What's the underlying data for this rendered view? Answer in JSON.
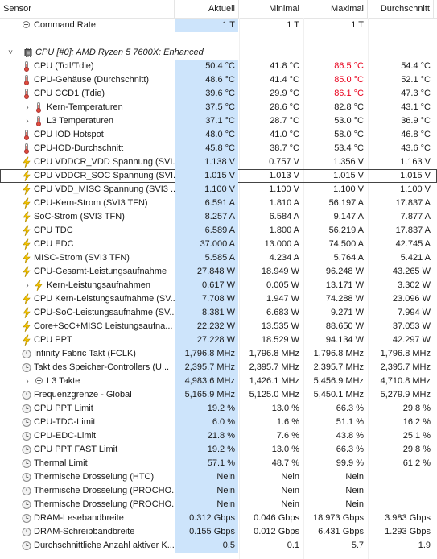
{
  "header": {
    "sensor": "Sensor",
    "current": "Aktuell",
    "minimal": "Minimal",
    "maximal": "Maximal",
    "average": "Durchschnitt"
  },
  "rows": [
    {
      "type": "collapse",
      "indent": 0,
      "icon": "collapse-circle-icon",
      "label": "Command Rate",
      "cur": "1 T",
      "min": "1 T",
      "max": "1 T",
      "avg": ""
    },
    {
      "type": "blank"
    },
    {
      "type": "group",
      "label": "CPU [#0]: AMD Ryzen 5 7600X: Enhanced",
      "icon": "cpu-chip-icon"
    },
    {
      "type": "temp",
      "label": "CPU (Tctl/Tdie)",
      "cur": "50.4 °C",
      "min": "41.8 °C",
      "max": "86.5 °C",
      "avg": "54.4 °C",
      "maxRed": true
    },
    {
      "type": "temp",
      "label": "CPU-Gehäuse (Durchschnitt)",
      "cur": "48.6 °C",
      "min": "41.4 °C",
      "max": "85.0 °C",
      "avg": "52.1 °C",
      "maxRed": true
    },
    {
      "type": "temp",
      "label": "CPU CCD1 (Tdie)",
      "cur": "39.6 °C",
      "min": "29.9 °C",
      "max": "86.1 °C",
      "avg": "47.3 °C",
      "maxRed": true
    },
    {
      "type": "temp-expand",
      "label": "Kern-Temperaturen",
      "cur": "37.5 °C",
      "min": "28.6 °C",
      "max": "82.8 °C",
      "avg": "43.1 °C"
    },
    {
      "type": "temp-expand",
      "label": "L3 Temperaturen",
      "cur": "37.1 °C",
      "min": "28.7 °C",
      "max": "53.0 °C",
      "avg": "36.9 °C"
    },
    {
      "type": "temp",
      "label": "CPU IOD Hotspot",
      "cur": "48.0 °C",
      "min": "41.0 °C",
      "max": "58.0 °C",
      "avg": "46.8 °C"
    },
    {
      "type": "temp",
      "label": "CPU-IOD-Durchschnitt",
      "cur": "45.8 °C",
      "min": "38.7 °C",
      "max": "53.4 °C",
      "avg": "43.6 °C"
    },
    {
      "type": "volt",
      "label": "CPU VDDCR_VDD Spannung (SVI...",
      "cur": "1.138 V",
      "min": "0.757 V",
      "max": "1.356 V",
      "avg": "1.163 V"
    },
    {
      "type": "volt",
      "label": "CPU VDDCR_SOC Spannung (SVI...",
      "cur": "1.015 V",
      "min": "1.013 V",
      "max": "1.015 V",
      "avg": "1.015 V",
      "selected": true
    },
    {
      "type": "volt",
      "label": "CPU VDD_MISC Spannung (SVI3 ...",
      "cur": "1.100 V",
      "min": "1.100 V",
      "max": "1.100 V",
      "avg": "1.100 V"
    },
    {
      "type": "volt",
      "label": "CPU-Kern-Strom (SVI3 TFN)",
      "cur": "6.591 A",
      "min": "1.810 A",
      "max": "56.197 A",
      "avg": "17.837 A"
    },
    {
      "type": "volt",
      "label": "SoC-Strom (SVI3 TFN)",
      "cur": "8.257 A",
      "min": "6.584 A",
      "max": "9.147 A",
      "avg": "7.877 A"
    },
    {
      "type": "volt",
      "label": "CPU TDC",
      "cur": "6.589 A",
      "min": "1.800 A",
      "max": "56.219 A",
      "avg": "17.837 A"
    },
    {
      "type": "volt",
      "label": "CPU EDC",
      "cur": "37.000 A",
      "min": "13.000 A",
      "max": "74.500 A",
      "avg": "42.745 A"
    },
    {
      "type": "volt",
      "label": "MISC-Strom (SVI3 TFN)",
      "cur": "5.585 A",
      "min": "4.234 A",
      "max": "5.764 A",
      "avg": "5.421 A"
    },
    {
      "type": "volt",
      "label": "CPU-Gesamt-Leistungsaufnahme",
      "cur": "27.848 W",
      "min": "18.949 W",
      "max": "96.248 W",
      "avg": "43.265 W"
    },
    {
      "type": "volt-expand",
      "label": "Kern-Leistungsaufnahmen",
      "cur": "0.617 W",
      "min": "0.005 W",
      "max": "13.171 W",
      "avg": "3.302 W"
    },
    {
      "type": "volt",
      "label": "CPU Kern-Leistungsaufnahme (SV...",
      "cur": "7.708 W",
      "min": "1.947 W",
      "max": "74.288 W",
      "avg": "23.096 W"
    },
    {
      "type": "volt",
      "label": "CPU-SoC-Leistungsaufnahme (SV...",
      "cur": "8.381 W",
      "min": "6.683 W",
      "max": "9.271 W",
      "avg": "7.994 W"
    },
    {
      "type": "volt",
      "label": "Core+SoC+MISC Leistungsaufna...",
      "cur": "22.232 W",
      "min": "13.535 W",
      "max": "88.650 W",
      "avg": "37.053 W"
    },
    {
      "type": "volt",
      "label": "CPU PPT",
      "cur": "27.228 W",
      "min": "18.529 W",
      "max": "94.134 W",
      "avg": "42.297 W"
    },
    {
      "type": "clock",
      "label": "Infinity Fabric Takt (FCLK)",
      "cur": "1,796.8 MHz",
      "min": "1,796.8 MHz",
      "max": "1,796.8 MHz",
      "avg": "1,796.8 MHz"
    },
    {
      "type": "clock",
      "label": "Takt des Speicher-Controllers (U...",
      "cur": "2,395.7 MHz",
      "min": "2,395.7 MHz",
      "max": "2,395.7 MHz",
      "avg": "2,395.7 MHz"
    },
    {
      "type": "clock-expand",
      "label": "L3 Takte",
      "cur": "4,983.6 MHz",
      "min": "1,426.1 MHz",
      "max": "5,456.9 MHz",
      "avg": "4,710.8 MHz"
    },
    {
      "type": "clock",
      "label": "Frequenzgrenze - Global",
      "cur": "5,165.9 MHz",
      "min": "5,125.0 MHz",
      "max": "5,450.1 MHz",
      "avg": "5,279.9 MHz"
    },
    {
      "type": "clock",
      "label": "CPU PPT Limit",
      "cur": "19.2 %",
      "min": "13.0 %",
      "max": "66.3 %",
      "avg": "29.8 %"
    },
    {
      "type": "clock",
      "label": "CPU-TDC-Limit",
      "cur": "6.0 %",
      "min": "1.6 %",
      "max": "51.1 %",
      "avg": "16.2 %"
    },
    {
      "type": "clock",
      "label": "CPU-EDC-Limit",
      "cur": "21.8 %",
      "min": "7.6 %",
      "max": "43.8 %",
      "avg": "25.1 %"
    },
    {
      "type": "clock",
      "label": "CPU PPT FAST Limit",
      "cur": "19.2 %",
      "min": "13.0 %",
      "max": "66.3 %",
      "avg": "29.8 %"
    },
    {
      "type": "clock",
      "label": "Thermal Limit",
      "cur": "57.1 %",
      "min": "48.7 %",
      "max": "99.9 %",
      "avg": "61.2 %"
    },
    {
      "type": "clock",
      "label": "Thermische Drosselung (HTC)",
      "cur": "Nein",
      "min": "Nein",
      "max": "Nein",
      "avg": ""
    },
    {
      "type": "clock",
      "label": "Thermische Drosselung (PROCHO...",
      "cur": "Nein",
      "min": "Nein",
      "max": "Nein",
      "avg": ""
    },
    {
      "type": "clock",
      "label": "Thermische Drosselung (PROCHO...",
      "cur": "Nein",
      "min": "Nein",
      "max": "Nein",
      "avg": ""
    },
    {
      "type": "clock",
      "label": "DRAM-Lesebandbreite",
      "cur": "0.312 Gbps",
      "min": "0.046 Gbps",
      "max": "18.973 Gbps",
      "avg": "3.983 Gbps"
    },
    {
      "type": "clock",
      "label": "DRAM-Schreibbandbreite",
      "cur": "0.155 Gbps",
      "min": "0.012 Gbps",
      "max": "6.431 Gbps",
      "avg": "1.293 Gbps"
    },
    {
      "type": "clock",
      "label": "Durchschnittliche Anzahl aktiver K...",
      "cur": "0.5",
      "min": "0.1",
      "max": "5.7",
      "avg": "1.9"
    }
  ],
  "colors": {
    "current_column_bg": "#cde4fb",
    "max_alert": "#e8001c",
    "thermometer": "#e04b3c",
    "lightning": "#f2c200",
    "clock_icon": "#8a8a8a"
  }
}
